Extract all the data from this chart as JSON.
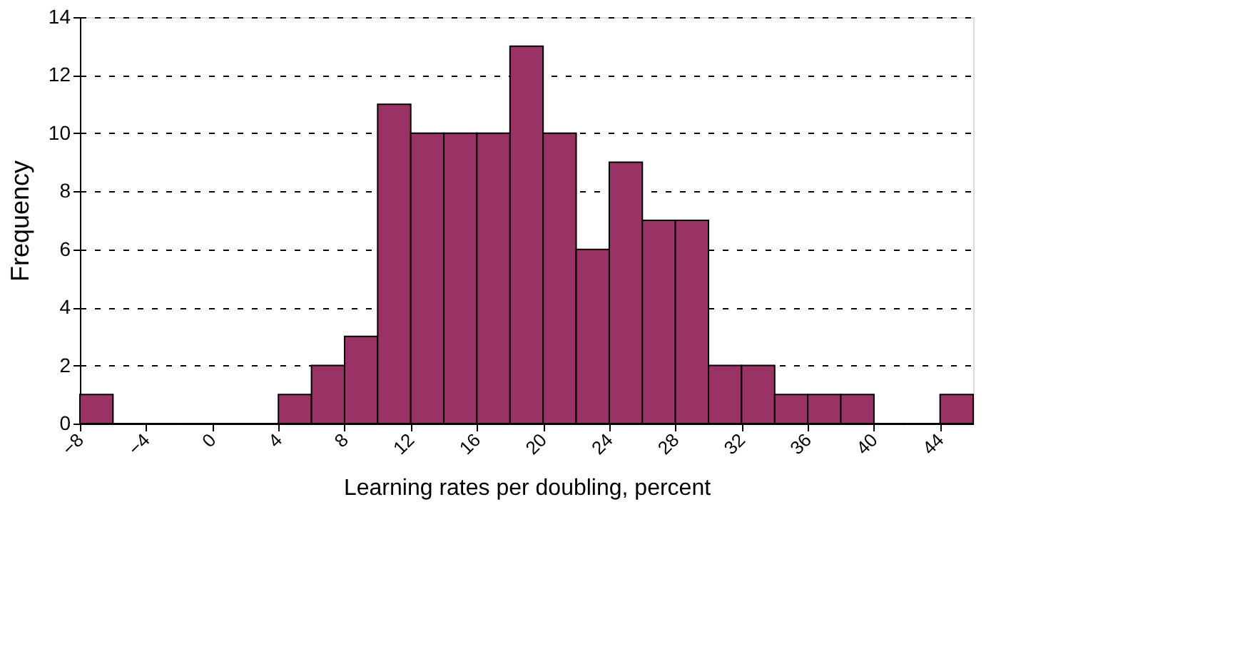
{
  "chart_data": {
    "type": "histogram",
    "xlabel": "Learning rates per doubling, percent",
    "ylabel": "Frequency",
    "bins": [
      -8,
      -6,
      -4,
      -2,
      0,
      2,
      4,
      6,
      8,
      10,
      12,
      14,
      16,
      18,
      20,
      22,
      24,
      26,
      28,
      30,
      32,
      34,
      36,
      38,
      40,
      42,
      44,
      46
    ],
    "values": [
      1,
      0,
      0,
      0,
      0,
      0,
      1,
      2,
      3,
      11,
      10,
      10,
      10,
      13,
      10,
      6,
      9,
      7,
      7,
      2,
      2,
      1,
      1,
      1,
      0,
      0,
      1
    ],
    "color": "#993366",
    "xlim": [
      -8,
      46
    ],
    "xticks": [
      -8,
      -4,
      0,
      4,
      8,
      12,
      16,
      20,
      24,
      28,
      32,
      36,
      40,
      44
    ],
    "ylim": [
      0,
      14
    ],
    "yticks": [
      0,
      2,
      4,
      6,
      8,
      10,
      12,
      14
    ],
    "grid": "y"
  }
}
